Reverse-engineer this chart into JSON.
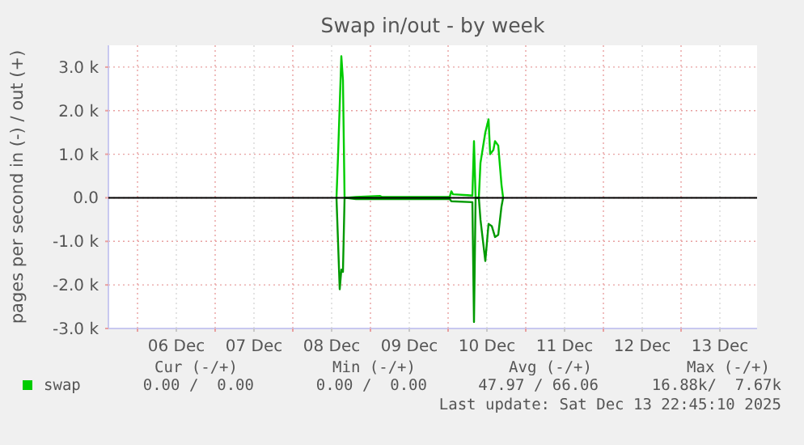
{
  "chart_data": {
    "type": "line",
    "title": "Swap in/out - by week",
    "ylabel": "pages per second in (-) / out (+)",
    "xlim": [
      "2025-12-05T15:00",
      "2025-12-13T23:30"
    ],
    "xticks": [
      {
        "value": "2025-12-06T00:00",
        "label": null
      },
      {
        "value": "2025-12-06T12:00",
        "label": "06 Dec"
      },
      {
        "value": "2025-12-07T00:00",
        "label": null
      },
      {
        "value": "2025-12-07T12:00",
        "label": "07 Dec"
      },
      {
        "value": "2025-12-08T00:00",
        "label": null
      },
      {
        "value": "2025-12-08T12:00",
        "label": "08 Dec"
      },
      {
        "value": "2025-12-09T00:00",
        "label": null
      },
      {
        "value": "2025-12-09T12:00",
        "label": "09 Dec"
      },
      {
        "value": "2025-12-10T00:00",
        "label": null
      },
      {
        "value": "2025-12-10T12:00",
        "label": "10 Dec"
      },
      {
        "value": "2025-12-11T00:00",
        "label": null
      },
      {
        "value": "2025-12-11T12:00",
        "label": "11 Dec"
      },
      {
        "value": "2025-12-12T00:00",
        "label": null
      },
      {
        "value": "2025-12-12T12:00",
        "label": "12 Dec"
      },
      {
        "value": "2025-12-13T00:00",
        "label": null
      },
      {
        "value": "2025-12-13T12:00",
        "label": "13 Dec"
      }
    ],
    "ylim": [
      -3000,
      3500
    ],
    "yticks": [
      {
        "value": -3000,
        "label": "-3.0 k"
      },
      {
        "value": -2000,
        "label": "-2.0 k"
      },
      {
        "value": -1000,
        "label": "-1.0 k"
      },
      {
        "value": 0,
        "label": "0.0"
      },
      {
        "value": 1000,
        "label": "1.0 k"
      },
      {
        "value": 2000,
        "label": "2.0 k"
      },
      {
        "value": 3000,
        "label": "3.0 k"
      }
    ],
    "grid": true,
    "legend": "bottom",
    "marker": "none",
    "line_style": "solid",
    "ref_lines": [
      {
        "axis": "y",
        "value": 0,
        "color": "#000000"
      }
    ],
    "series": [
      {
        "name": "swap",
        "color": "#00cc00",
        "x": [
          "2025-12-08T13:30",
          "2025-12-08T14:00",
          "2025-12-08T15:00",
          "2025-12-08T15:30",
          "2025-12-08T16:00",
          "2025-12-08T16:30",
          "2025-12-08T19:30",
          "2025-12-09T03:00",
          "2025-12-09T03:30",
          "2025-12-10T00:30",
          "2025-12-10T01:00",
          "2025-12-10T01:30",
          "2025-12-10T06:00",
          "2025-12-10T07:30",
          "2025-12-10T08:00",
          "2025-12-10T08:30",
          "2025-12-10T09:30",
          "2025-12-10T10:00",
          "2025-12-10T11:30",
          "2025-12-10T12:30",
          "2025-12-10T13:00",
          "2025-12-10T14:00",
          "2025-12-10T14:30",
          "2025-12-10T15:30",
          "2025-12-10T16:30",
          "2025-12-10T17:00"
        ],
        "values": [
          0,
          1000,
          3250,
          2700,
          0,
          0,
          20,
          40,
          20,
          20,
          150,
          80,
          60,
          50,
          1300,
          0,
          0,
          800,
          1500,
          1800,
          1000,
          1100,
          1300,
          1200,
          300,
          0
        ]
      },
      {
        "color": "#009900",
        "x": [
          "2025-12-08T13:30",
          "2025-12-08T14:30",
          "2025-12-08T15:00",
          "2025-12-08T15:30",
          "2025-12-08T16:00",
          "2025-12-08T16:30",
          "2025-12-08T19:30",
          "2025-12-10T00:30",
          "2025-12-10T01:00",
          "2025-12-10T07:30",
          "2025-12-10T08:00",
          "2025-12-10T08:30",
          "2025-12-10T09:30",
          "2025-12-10T10:00",
          "2025-12-10T11:30",
          "2025-12-10T12:30",
          "2025-12-10T13:30",
          "2025-12-10T14:30",
          "2025-12-10T15:30",
          "2025-12-10T16:30",
          "2025-12-10T17:00"
        ],
        "values": [
          0,
          -2100,
          -1650,
          -1700,
          0,
          0,
          -30,
          -30,
          -80,
          -100,
          -2850,
          0,
          0,
          -500,
          -1450,
          -600,
          -650,
          -900,
          -850,
          -200,
          0
        ]
      }
    ],
    "annotations": [
      "Cur (-/+)",
      "Min (-/+)",
      "Avg (-/+)",
      "Max (-/+)",
      "0.00 /  0.00",
      "0.00 /  0.00",
      "47.97 / 66.06",
      "16.88k/  7.67k",
      "Last update: Sat Dec 13 22:45:10 2025"
    ]
  }
}
